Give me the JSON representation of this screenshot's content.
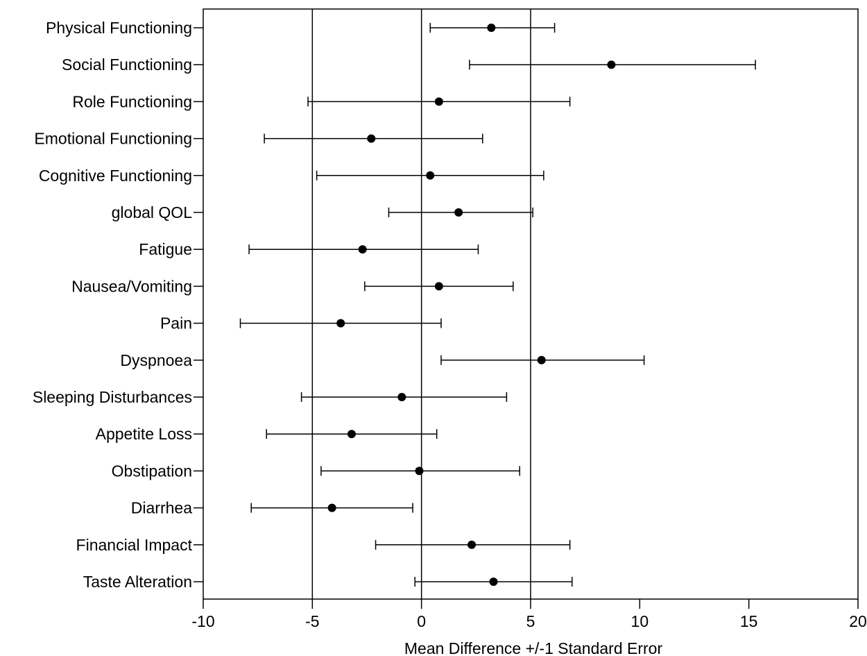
{
  "chart_data": {
    "type": "forest",
    "xlabel": "Mean Difference +/-1 Standard Error",
    "ylabel": "",
    "title": "",
    "xlim": [
      -10,
      20
    ],
    "xticks": [
      -10,
      -5,
      0,
      5,
      10,
      15,
      20
    ],
    "xtick_labels": [
      "-10",
      "-5",
      "0",
      "5",
      "10",
      "15",
      "20"
    ],
    "reference_lines": [
      -5,
      0,
      5
    ],
    "grid": false,
    "legend": "none",
    "items": [
      {
        "label": "Physical Functioning",
        "mean": 3.2,
        "lower": 0.4,
        "upper": 6.1
      },
      {
        "label": "Social Functioning",
        "mean": 8.7,
        "lower": 2.2,
        "upper": 15.3
      },
      {
        "label": "Role Functioning",
        "mean": 0.8,
        "lower": -5.2,
        "upper": 6.8
      },
      {
        "label": "Emotional Functioning",
        "mean": -2.3,
        "lower": -7.2,
        "upper": 2.8
      },
      {
        "label": "Cognitive Functioning",
        "mean": 0.4,
        "lower": -4.8,
        "upper": 5.6
      },
      {
        "label": "global QOL",
        "mean": 1.7,
        "lower": -1.5,
        "upper": 5.1
      },
      {
        "label": "Fatigue",
        "mean": -2.7,
        "lower": -7.9,
        "upper": 2.6
      },
      {
        "label": "Nausea/Vomiting",
        "mean": 0.8,
        "lower": -2.6,
        "upper": 4.2
      },
      {
        "label": "Pain",
        "mean": -3.7,
        "lower": -8.3,
        "upper": 0.9
      },
      {
        "label": "Dyspnoea",
        "mean": 5.5,
        "lower": 0.9,
        "upper": 10.2
      },
      {
        "label": "Sleeping Disturbances",
        "mean": -0.9,
        "lower": -5.5,
        "upper": 3.9
      },
      {
        "label": "Appetite Loss",
        "mean": -3.2,
        "lower": -7.1,
        "upper": 0.7
      },
      {
        "label": "Obstipation",
        "mean": -0.1,
        "lower": -4.6,
        "upper": 4.5
      },
      {
        "label": "Diarrhea",
        "mean": -4.1,
        "lower": -7.8,
        "upper": -0.4
      },
      {
        "label": "Financial Impact",
        "mean": 2.3,
        "lower": -2.1,
        "upper": 6.8
      },
      {
        "label": "Taste Alteration",
        "mean": 3.3,
        "lower": -0.3,
        "upper": 6.9
      }
    ]
  }
}
